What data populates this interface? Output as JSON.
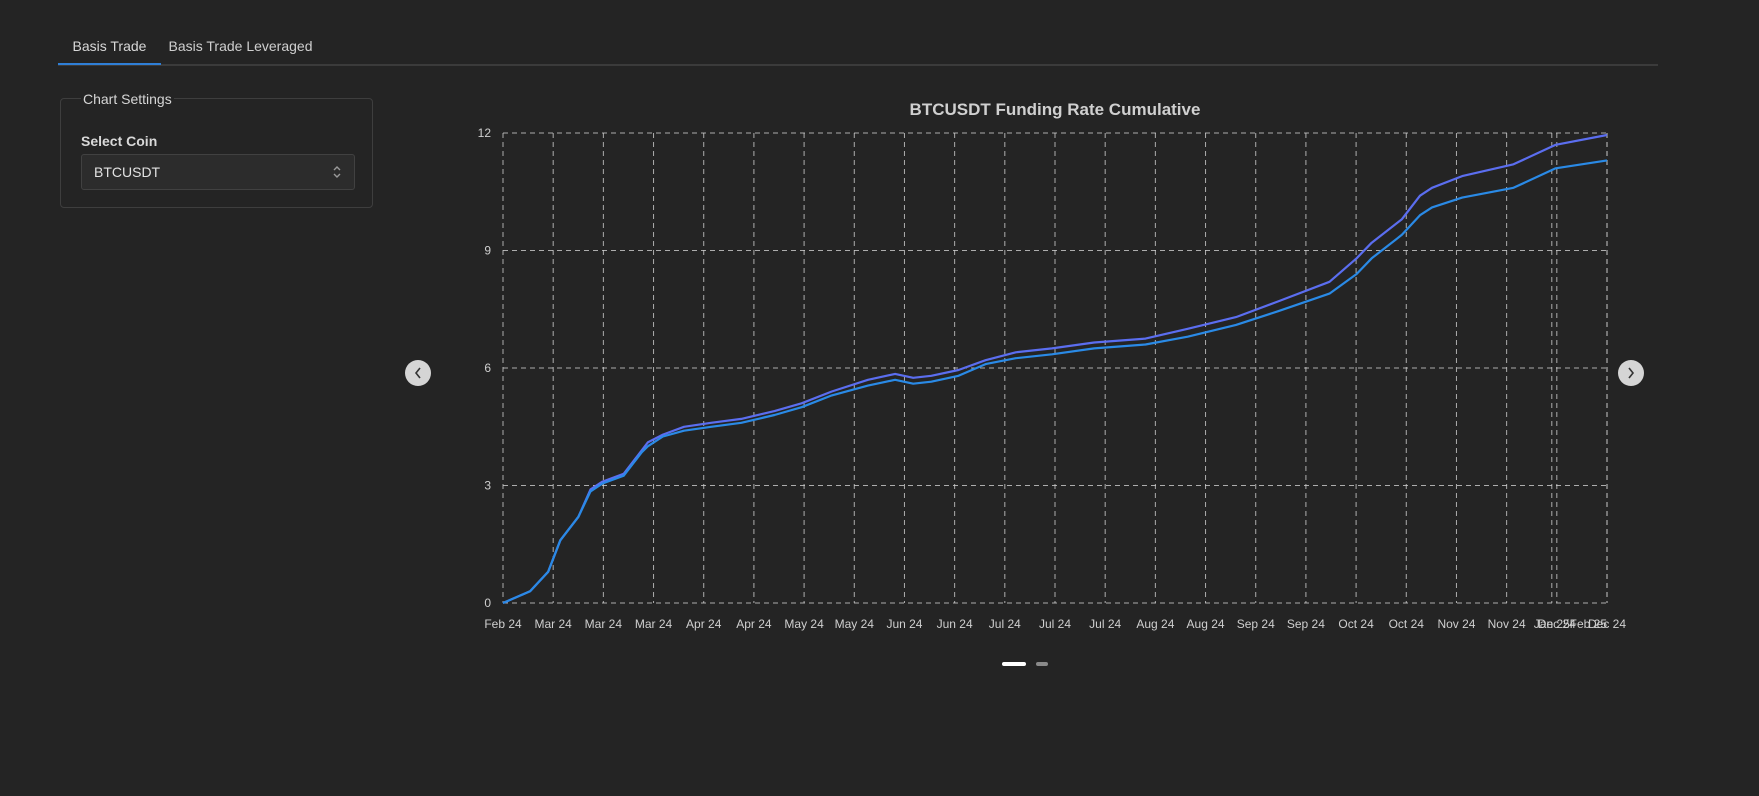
{
  "tabs": [
    {
      "label": "Basis Trade",
      "active": true
    },
    {
      "label": "Basis Trade Leveraged",
      "active": false
    }
  ],
  "settings": {
    "legend": "Chart Settings",
    "coin_label": "Select Coin",
    "coin_value": "BTCUSDT"
  },
  "icons": {
    "prev": "chevron-left-icon",
    "next": "chevron-right-icon",
    "select": "chevron-updown-icon"
  },
  "colors": {
    "background": "#242424",
    "series_1": "#5b6ef0",
    "series_2": "#2a8ae6",
    "grid": "#d0d0d0",
    "accent": "#2f7fd6"
  },
  "carousel": {
    "pages": 2,
    "active_page": 1
  },
  "chart_data": {
    "type": "line",
    "title": "BTCUSDT Funding Rate Cumulative",
    "xlabel": "",
    "ylabel": "",
    "ylim": [
      0,
      12
    ],
    "yticks": [
      0,
      3,
      6,
      9,
      12
    ],
    "xlim": [
      "2024-02-01",
      "2025-02-01"
    ],
    "xtick_labels": [
      "Feb 24",
      "Mar 24",
      "Mar 24",
      "Mar 24",
      "Apr 24",
      "Apr 24",
      "May 24",
      "May 24",
      "Jun 24",
      "Jun 24",
      "Jul 24",
      "Jul 24",
      "Jul 24",
      "Aug 24",
      "Aug 24",
      "Sep 24",
      "Sep 24",
      "Oct 24",
      "Oct 24",
      "Nov 24",
      "Nov 24",
      "Dec 24",
      "Dec 24",
      "Dec 24",
      "Jan 25",
      "Feb 25"
    ],
    "grid": true,
    "legend": "none",
    "x": [
      "2024-02-01",
      "2024-02-10",
      "2024-02-16",
      "2024-02-20",
      "2024-02-26",
      "2024-03-01",
      "2024-03-05",
      "2024-03-12",
      "2024-03-18",
      "2024-03-20",
      "2024-03-25",
      "2024-04-01",
      "2024-04-10",
      "2024-04-20",
      "2024-05-01",
      "2024-05-10",
      "2024-05-20",
      "2024-06-01",
      "2024-06-10",
      "2024-06-16",
      "2024-06-22",
      "2024-07-01",
      "2024-07-10",
      "2024-07-20",
      "2024-08-01",
      "2024-08-15",
      "2024-09-01",
      "2024-09-15",
      "2024-10-01",
      "2024-10-15",
      "2024-11-01",
      "2024-11-10",
      "2024-11-15",
      "2024-11-25",
      "2024-12-01",
      "2024-12-05",
      "2024-12-15",
      "2025-01-01",
      "2025-01-15",
      "2025-02-01"
    ],
    "series": [
      {
        "values": [
          0.0,
          0.3,
          0.8,
          1.6,
          2.2,
          2.9,
          3.1,
          3.3,
          3.9,
          4.1,
          4.3,
          4.5,
          4.6,
          4.7,
          4.9,
          5.1,
          5.4,
          5.7,
          5.85,
          5.75,
          5.8,
          5.95,
          6.2,
          6.4,
          6.5,
          6.65,
          6.75,
          7.0,
          7.3,
          7.7,
          8.2,
          8.8,
          9.2,
          9.8,
          10.4,
          10.6,
          10.9,
          11.2,
          11.7,
          11.95
        ]
      },
      {
        "values": [
          0.0,
          0.3,
          0.8,
          1.6,
          2.2,
          2.85,
          3.05,
          3.25,
          3.85,
          4.0,
          4.25,
          4.4,
          4.5,
          4.6,
          4.8,
          5.0,
          5.3,
          5.55,
          5.7,
          5.6,
          5.65,
          5.8,
          6.1,
          6.25,
          6.35,
          6.5,
          6.6,
          6.8,
          7.1,
          7.45,
          7.9,
          8.4,
          8.8,
          9.4,
          9.9,
          10.1,
          10.35,
          10.6,
          11.1,
          11.3
        ]
      }
    ]
  }
}
